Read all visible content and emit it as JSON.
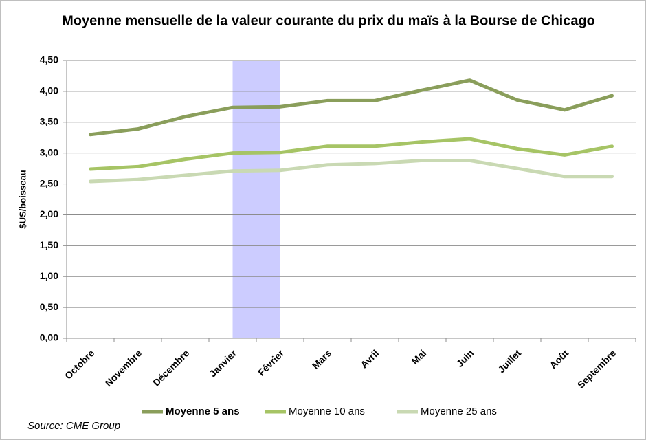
{
  "chart_data": {
    "type": "line",
    "title": "Moyenne mensuelle de la valeur courante du prix du maïs à la Bourse de Chicago",
    "y_label": "$US/boisseau",
    "source": "Source: CME Group",
    "categories": [
      "Octobre",
      "Novembre",
      "Décembre",
      "Janvier",
      "Février",
      "Mars",
      "Avril",
      "Mai",
      "Juin",
      "Juillet",
      "Août",
      "Septembre"
    ],
    "highlight_range": [
      "Janvier",
      "Février"
    ],
    "highlight_color": "#ccccff",
    "series": [
      {
        "name": "Moyenne 5 ans",
        "color": "#8a9e5b",
        "values": [
          3.3,
          3.39,
          3.59,
          3.74,
          3.75,
          3.85,
          3.85,
          4.02,
          4.18,
          3.86,
          3.7,
          3.93
        ]
      },
      {
        "name": "Moyenne 10 ans",
        "color": "#a6c465",
        "values": [
          2.74,
          2.78,
          2.9,
          3.0,
          3.01,
          3.11,
          3.11,
          3.18,
          3.23,
          3.07,
          2.97,
          3.11
        ]
      },
      {
        "name": "Moyenne 25 ans",
        "color": "#c9d9b3",
        "values": [
          2.54,
          2.57,
          2.64,
          2.71,
          2.72,
          2.81,
          2.83,
          2.88,
          2.88,
          2.75,
          2.62,
          2.62
        ]
      }
    ],
    "ylim": [
      0,
      4.5
    ],
    "yticks": [
      {
        "value": 0,
        "label": "0,00"
      },
      {
        "value": 0.5,
        "label": "0,50"
      },
      {
        "value": 1,
        "label": "1,00"
      },
      {
        "value": 1.5,
        "label": "1,50"
      },
      {
        "value": 2,
        "label": "2,00"
      },
      {
        "value": 2.5,
        "label": "2,50"
      },
      {
        "value": 3,
        "label": "3,00"
      },
      {
        "value": 3.5,
        "label": "3,50"
      },
      {
        "value": 4,
        "label": "4,00"
      },
      {
        "value": 4.5,
        "label": "4,50"
      }
    ],
    "grid": true,
    "legend": "bottom"
  }
}
